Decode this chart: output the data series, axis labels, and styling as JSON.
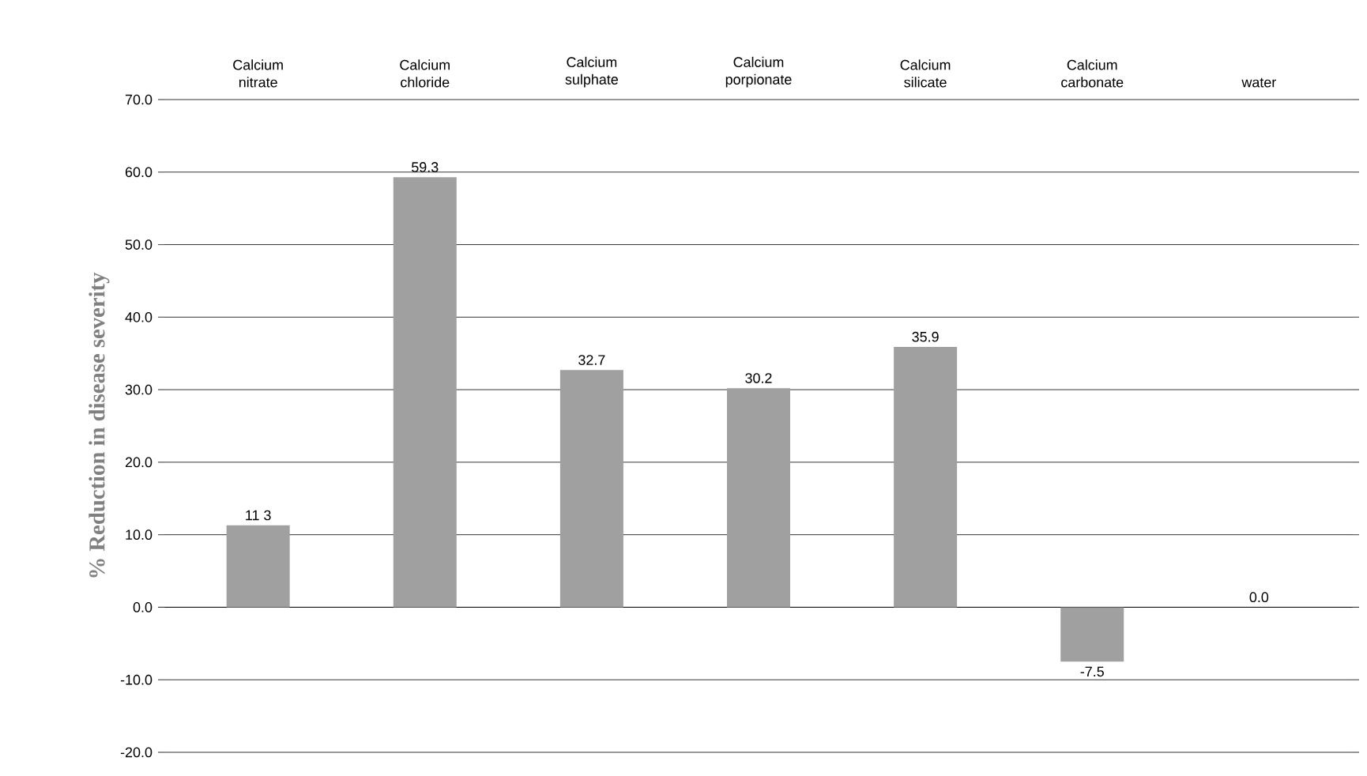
{
  "chart_data": {
    "type": "bar",
    "ylabel": "% Reduction in disease severity",
    "categories": [
      "Calcium nitrate",
      "Calcium chloride",
      "Calcium sulphate",
      "Calcium porpionate",
      "Calcium silicate",
      "Calcium carbonate",
      "water"
    ],
    "values": [
      11.3,
      59.3,
      32.7,
      30.2,
      35.9,
      -7.5,
      0.0
    ],
    "color": "#a0a0a0",
    "ylim": [
      -20,
      70
    ],
    "yticks": [
      {
        "value": -20,
        "label": "-20.0"
      },
      {
        "value": -10,
        "label": "-10.0"
      },
      {
        "value": 0,
        "label": "0.0"
      },
      {
        "value": 10,
        "label": "10.0"
      },
      {
        "value": 20,
        "label": "20.0"
      },
      {
        "value": 30,
        "label": "30.0"
      },
      {
        "value": 40,
        "label": "40.0"
      },
      {
        "value": 50,
        "label": "50.0"
      },
      {
        "value": 60,
        "label": "60.0"
      },
      {
        "value": 70,
        "label": "70.0"
      }
    ],
    "value_labels": [
      "11 3",
      "59.3",
      "32.7",
      "30.2",
      "35.9",
      "-7.5",
      "0.0"
    ],
    "grid": "y"
  }
}
